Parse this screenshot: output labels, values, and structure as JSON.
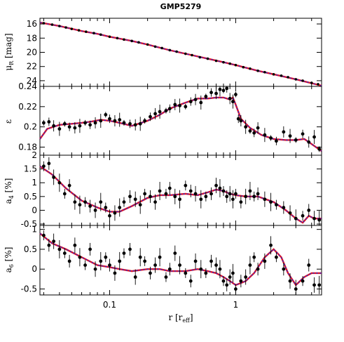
{
  "figure": {
    "title": "GMP5279",
    "x_axis_label": "r [r",
    "x_axis_label_sub": "eff",
    "x_axis_label_close": "]",
    "x_tick_labels": [
      "0.1",
      "1"
    ]
  },
  "colors": {
    "data_points": "#000000",
    "model_red": "#e8141e",
    "model_blue": "#1e2ad8",
    "axes": "#000000"
  },
  "chart_data": [
    {
      "type": "scatter",
      "panel": "mu",
      "ylabel": "μ_R [mag]",
      "ylabel_main": "μ",
      "ylabel_sub": "R",
      "ylabel_unit": "[mag]",
      "xscale": "log",
      "xlim": [
        0.028,
        4.8
      ],
      "ylim": [
        24.8,
        15.2
      ],
      "y_inverted": true,
      "yticks": [
        16,
        18,
        20,
        22,
        24
      ],
      "series": [
        {
          "role": "data",
          "x": [
            0.03,
            0.035,
            0.04,
            0.045,
            0.05,
            0.057,
            0.065,
            0.075,
            0.085,
            0.1,
            0.115,
            0.13,
            0.15,
            0.17,
            0.2,
            0.23,
            0.26,
            0.3,
            0.34,
            0.4,
            0.45,
            0.52,
            0.6,
            0.7,
            0.8,
            0.9,
            1.0,
            1.15,
            1.3,
            1.5,
            1.7,
            2.0,
            2.3,
            2.6,
            3.0,
            3.4,
            4.0,
            4.5
          ],
          "y": [
            15.9,
            16.1,
            16.3,
            16.5,
            16.7,
            16.9,
            17.1,
            17.3,
            17.5,
            17.8,
            18.0,
            18.2,
            18.4,
            18.6,
            18.9,
            19.2,
            19.4,
            19.7,
            19.9,
            20.2,
            20.4,
            20.7,
            20.9,
            21.2,
            21.4,
            21.6,
            21.8,
            22.1,
            22.3,
            22.6,
            22.8,
            23.1,
            23.3,
            23.5,
            23.8,
            24.0,
            24.3,
            24.5
          ]
        },
        {
          "role": "model",
          "x": [
            0.028,
            0.04,
            0.06,
            0.08,
            0.1,
            0.15,
            0.2,
            0.3,
            0.4,
            0.6,
            0.8,
            1.0,
            1.5,
            2.0,
            3.0,
            4.8
          ],
          "y": [
            15.8,
            16.3,
            17.0,
            17.4,
            17.8,
            18.4,
            18.9,
            19.7,
            20.2,
            20.9,
            21.4,
            21.8,
            22.6,
            23.1,
            23.8,
            24.7
          ]
        }
      ]
    },
    {
      "type": "scatter",
      "panel": "epsilon",
      "ylabel": "ε",
      "xscale": "log",
      "xlim": [
        0.028,
        4.8
      ],
      "ylim": [
        0.172,
        0.24
      ],
      "yticks": [
        0.18,
        0.2,
        0.22,
        0.24
      ],
      "series": [
        {
          "role": "data",
          "x": [
            0.03,
            0.033,
            0.036,
            0.04,
            0.044,
            0.048,
            0.053,
            0.058,
            0.064,
            0.07,
            0.077,
            0.085,
            0.093,
            0.1,
            0.11,
            0.12,
            0.13,
            0.145,
            0.16,
            0.175,
            0.19,
            0.21,
            0.23,
            0.25,
            0.28,
            0.3,
            0.33,
            0.36,
            0.4,
            0.44,
            0.48,
            0.53,
            0.58,
            0.64,
            0.7,
            0.75,
            0.8,
            0.85,
            0.9,
            0.95,
            1.0,
            1.05,
            1.1,
            1.2,
            1.3,
            1.4,
            1.5,
            1.7,
            1.9,
            2.1,
            2.4,
            2.7,
            3.0,
            3.4,
            3.8,
            4.2,
            4.6
          ],
          "y": [
            0.204,
            0.205,
            0.201,
            0.198,
            0.203,
            0.2,
            0.199,
            0.201,
            0.204,
            0.202,
            0.204,
            0.206,
            0.212,
            0.208,
            0.206,
            0.207,
            0.204,
            0.203,
            0.202,
            0.203,
            0.206,
            0.21,
            0.213,
            0.215,
            0.216,
            0.218,
            0.222,
            0.221,
            0.22,
            0.225,
            0.227,
            0.224,
            0.23,
            0.234,
            0.233,
            0.237,
            0.236,
            0.238,
            0.228,
            0.225,
            0.232,
            0.208,
            0.206,
            0.2,
            0.196,
            0.194,
            0.199,
            0.192,
            0.189,
            0.186,
            0.195,
            0.191,
            0.187,
            0.193,
            0.185,
            0.19,
            0.178
          ]
        },
        {
          "role": "model",
          "x": [
            0.028,
            0.032,
            0.04,
            0.05,
            0.06,
            0.07,
            0.085,
            0.1,
            0.12,
            0.15,
            0.2,
            0.25,
            0.3,
            0.4,
            0.5,
            0.6,
            0.7,
            0.8,
            0.9,
            0.95,
            1.0,
            1.1,
            1.3,
            1.6,
            2.0,
            2.5,
            3.0,
            3.5,
            4.0,
            4.8
          ],
          "y": [
            0.188,
            0.198,
            0.202,
            0.203,
            0.204,
            0.205,
            0.207,
            0.206,
            0.204,
            0.201,
            0.206,
            0.212,
            0.218,
            0.224,
            0.228,
            0.228,
            0.229,
            0.229,
            0.227,
            0.229,
            0.222,
            0.208,
            0.199,
            0.192,
            0.188,
            0.187,
            0.187,
            0.188,
            0.183,
            0.176
          ]
        }
      ]
    },
    {
      "type": "scatter",
      "panel": "a4",
      "ylabel": "a4 [%]",
      "ylabel_main": "a",
      "ylabel_sub": "4",
      "ylabel_unit": "[%]",
      "xscale": "log",
      "xlim": [
        0.028,
        4.8
      ],
      "ylim": [
        -0.55,
        2.0
      ],
      "yticks": [
        -0.5,
        0,
        0.5,
        1,
        1.5,
        2
      ],
      "ytick_labels": [
        "-0.5",
        "0",
        "0.5",
        "1",
        "1.5",
        "2"
      ],
      "series": [
        {
          "role": "data",
          "x": [
            0.03,
            0.033,
            0.036,
            0.04,
            0.044,
            0.048,
            0.053,
            0.058,
            0.064,
            0.07,
            0.077,
            0.085,
            0.093,
            0.1,
            0.11,
            0.12,
            0.13,
            0.145,
            0.16,
            0.175,
            0.19,
            0.21,
            0.23,
            0.25,
            0.28,
            0.3,
            0.33,
            0.36,
            0.4,
            0.44,
            0.48,
            0.53,
            0.58,
            0.64,
            0.7,
            0.75,
            0.8,
            0.85,
            0.9,
            0.95,
            1.0,
            1.1,
            1.2,
            1.3,
            1.4,
            1.5,
            1.7,
            1.9,
            2.1,
            2.4,
            2.7,
            3.0,
            3.4,
            3.8,
            4.2,
            4.6
          ],
          "y": [
            1.6,
            1.7,
            1.2,
            1.0,
            0.6,
            0.9,
            0.3,
            0.2,
            0.3,
            0.15,
            0.0,
            0.3,
            0.1,
            -0.2,
            -0.1,
            0.1,
            0.3,
            0.5,
            0.4,
            0.2,
            0.6,
            0.5,
            0.3,
            0.7,
            0.6,
            0.8,
            0.5,
            0.4,
            0.9,
            0.7,
            0.6,
            0.4,
            0.5,
            0.6,
            0.9,
            0.8,
            0.7,
            0.5,
            0.6,
            0.4,
            0.6,
            0.3,
            0.5,
            0.7,
            0.5,
            0.6,
            0.4,
            0.3,
            0.2,
            0.1,
            -0.1,
            -0.3,
            -0.2,
            0.0,
            -0.3,
            -0.35
          ]
        },
        {
          "role": "model",
          "x": [
            0.028,
            0.035,
            0.045,
            0.06,
            0.08,
            0.1,
            0.12,
            0.15,
            0.2,
            0.25,
            0.3,
            0.4,
            0.5,
            0.6,
            0.7,
            0.8,
            0.9,
            1.0,
            1.2,
            1.5,
            2.0,
            2.5,
            3.0,
            3.4,
            3.8,
            4.2,
            4.8
          ],
          "y": [
            1.6,
            1.3,
            0.8,
            0.35,
            0.1,
            -0.05,
            -0.05,
            0.15,
            0.45,
            0.55,
            0.55,
            0.6,
            0.55,
            0.65,
            0.75,
            0.7,
            0.6,
            0.55,
            0.5,
            0.5,
            0.3,
            0.0,
            -0.3,
            -0.45,
            -0.2,
            -0.3,
            -0.3
          ]
        }
      ]
    },
    {
      "type": "scatter",
      "panel": "a6",
      "ylabel": "a6 [%]",
      "ylabel_main": "a",
      "ylabel_sub": "6",
      "ylabel_unit": "[%]",
      "xscale": "log",
      "xlim": [
        0.028,
        4.8
      ],
      "ylim": [
        -0.65,
        1.1
      ],
      "yticks": [
        -0.5,
        0,
        0.5,
        1
      ],
      "ytick_labels": [
        "-0.5",
        "0",
        "0.5",
        "1"
      ],
      "series": [
        {
          "role": "data",
          "x": [
            0.03,
            0.033,
            0.036,
            0.04,
            0.044,
            0.048,
            0.053,
            0.058,
            0.064,
            0.07,
            0.077,
            0.085,
            0.093,
            0.1,
            0.11,
            0.12,
            0.13,
            0.145,
            0.16,
            0.175,
            0.19,
            0.21,
            0.23,
            0.25,
            0.28,
            0.3,
            0.33,
            0.36,
            0.4,
            0.44,
            0.48,
            0.53,
            0.58,
            0.64,
            0.7,
            0.75,
            0.8,
            0.85,
            0.9,
            0.95,
            1.0,
            1.1,
            1.2,
            1.3,
            1.4,
            1.5,
            1.7,
            1.9,
            2.1,
            2.4,
            2.7,
            3.0,
            3.4,
            3.8,
            4.2,
            4.6
          ],
          "y": [
            0.85,
            0.6,
            0.7,
            0.5,
            0.4,
            0.2,
            0.6,
            0.3,
            0.1,
            0.5,
            0.0,
            0.2,
            0.3,
            0.1,
            -0.1,
            0.2,
            0.4,
            0.5,
            -0.2,
            0.3,
            0.2,
            -0.1,
            0.1,
            0.3,
            -0.2,
            0.0,
            0.4,
            0.1,
            -0.1,
            -0.3,
            0.2,
            0.0,
            -0.1,
            0.2,
            0.1,
            0.0,
            -0.3,
            -0.4,
            -0.2,
            -0.1,
            -0.5,
            -0.3,
            -0.2,
            0.1,
            0.3,
            0.0,
            0.2,
            0.6,
            0.3,
            0.0,
            -0.3,
            -0.5,
            -0.3,
            0.1,
            -0.4,
            -0.4
          ]
        },
        {
          "role": "model",
          "x": [
            0.028,
            0.035,
            0.045,
            0.06,
            0.08,
            0.1,
            0.12,
            0.15,
            0.2,
            0.25,
            0.3,
            0.4,
            0.5,
            0.6,
            0.7,
            0.8,
            0.9,
            1.0,
            1.1,
            1.2,
            1.4,
            1.7,
            2.0,
            2.3,
            2.6,
            3.0,
            3.5,
            4.0,
            4.8
          ],
          "y": [
            0.9,
            0.65,
            0.5,
            0.3,
            0.1,
            0.05,
            0.0,
            -0.05,
            0.0,
            0.0,
            -0.05,
            -0.05,
            0.0,
            -0.05,
            -0.1,
            -0.2,
            -0.3,
            -0.4,
            -0.35,
            -0.3,
            -0.1,
            0.3,
            0.5,
            0.3,
            -0.1,
            -0.4,
            -0.2,
            -0.1,
            -0.1
          ]
        }
      ]
    }
  ]
}
